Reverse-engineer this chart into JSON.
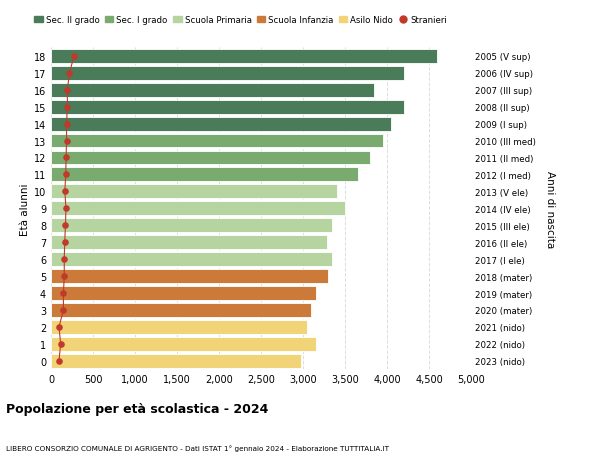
{
  "ages": [
    18,
    17,
    16,
    15,
    14,
    13,
    12,
    11,
    10,
    9,
    8,
    7,
    6,
    5,
    4,
    3,
    2,
    1,
    0
  ],
  "right_labels": [
    "2005 (V sup)",
    "2006 (IV sup)",
    "2007 (III sup)",
    "2008 (II sup)",
    "2009 (I sup)",
    "2010 (III med)",
    "2011 (II med)",
    "2012 (I med)",
    "2013 (V ele)",
    "2014 (IV ele)",
    "2015 (III ele)",
    "2016 (II ele)",
    "2017 (I ele)",
    "2018 (mater)",
    "2019 (mater)",
    "2020 (mater)",
    "2021 (nido)",
    "2022 (nido)",
    "2023 (nido)"
  ],
  "values": [
    4600,
    4200,
    3850,
    4200,
    4050,
    3950,
    3800,
    3650,
    3400,
    3500,
    3350,
    3280,
    3350,
    3300,
    3150,
    3100,
    3050,
    3150,
    2980
  ],
  "stranieri": [
    275,
    220,
    195,
    195,
    185,
    185,
    180,
    175,
    165,
    178,
    172,
    163,
    158,
    158,
    148,
    148,
    95,
    115,
    95
  ],
  "bar_colors": [
    "#4a7c59",
    "#4a7c59",
    "#4a7c59",
    "#4a7c59",
    "#4a7c59",
    "#7aab6e",
    "#7aab6e",
    "#7aab6e",
    "#b5d4a0",
    "#b5d4a0",
    "#b5d4a0",
    "#b5d4a0",
    "#b5d4a0",
    "#cc7a3a",
    "#cc7a3a",
    "#cc7a3a",
    "#f2d478",
    "#f2d478",
    "#f2d478"
  ],
  "legend_labels": [
    "Sec. II grado",
    "Sec. I grado",
    "Scuola Primaria",
    "Scuola Infanzia",
    "Asilo Nido",
    "Stranieri"
  ],
  "legend_colors": [
    "#4a7c59",
    "#7aab6e",
    "#b5d4a0",
    "#cc7a3a",
    "#f2d478",
    "#c0392b"
  ],
  "ylabel_left": "Età alunni",
  "ylabel_right": "Anni di nascita",
  "title": "Popolazione per età scolastica - 2024",
  "subtitle": "LIBERO CONSORZIO COMUNALE DI AGRIGENTO - Dati ISTAT 1° gennaio 2024 - Elaborazione TUTTITALIA.IT",
  "xlim": [
    0,
    5000
  ],
  "xticks": [
    0,
    500,
    1000,
    1500,
    2000,
    2500,
    3000,
    3500,
    4000,
    4500,
    5000
  ],
  "background_color": "#ffffff",
  "grid_color": "#dddddd",
  "stranieri_color": "#c0392b",
  "bar_height": 0.82
}
